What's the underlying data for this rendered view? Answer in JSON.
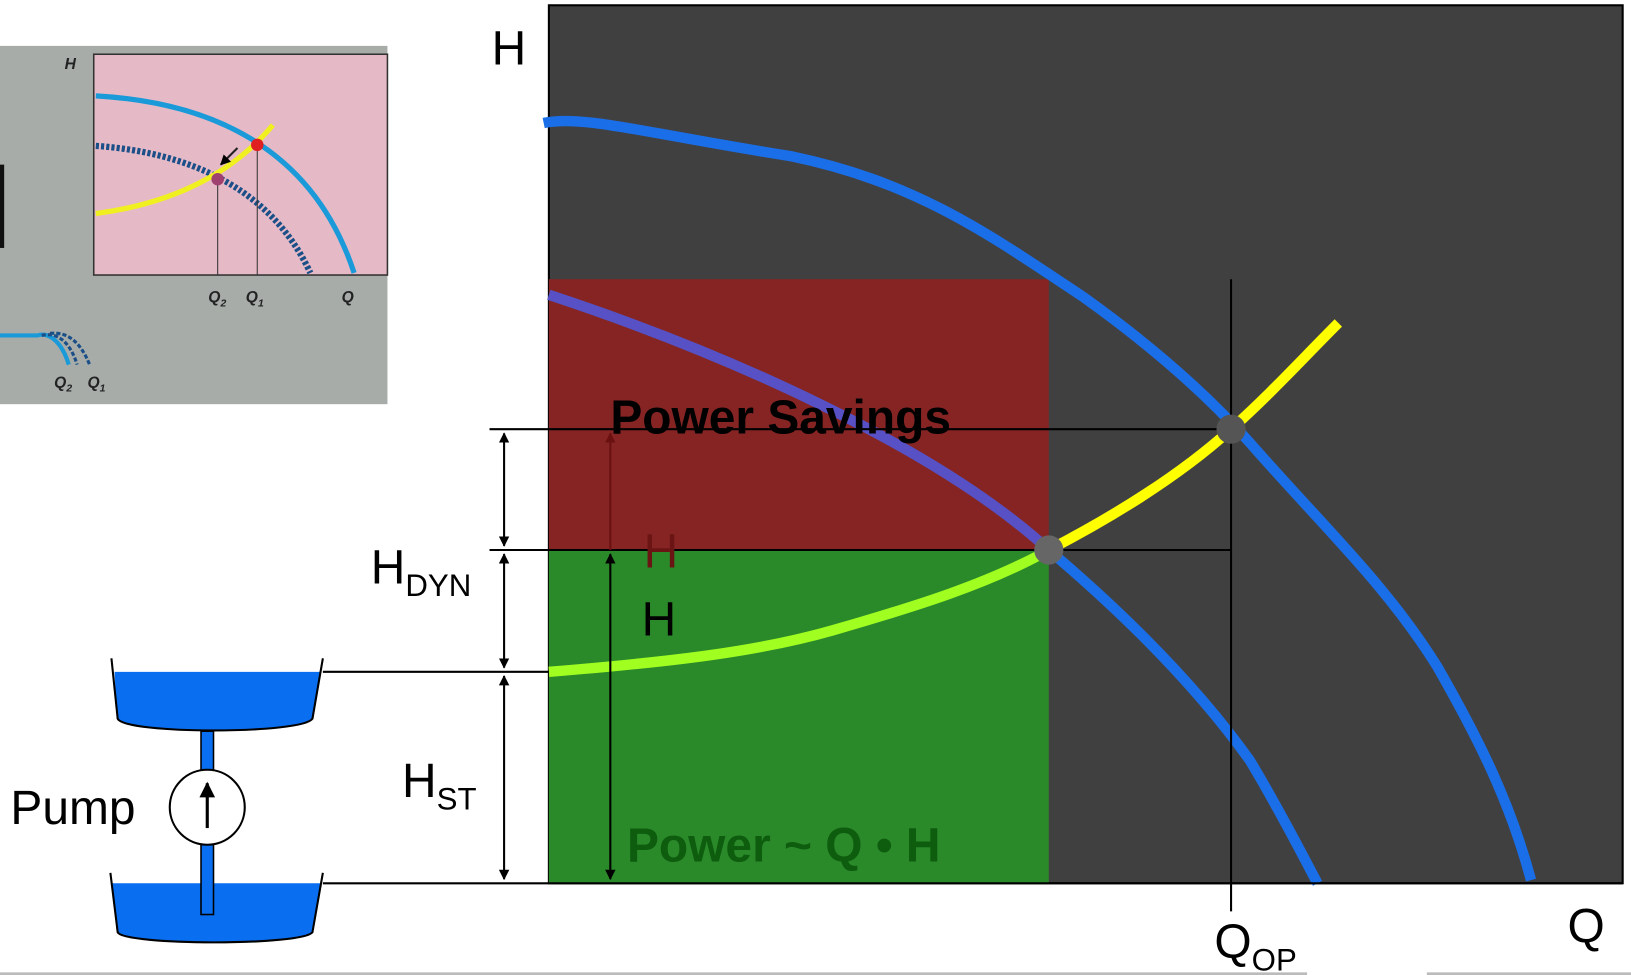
{
  "main_chart": {
    "y_axis_label": "H",
    "x_axis_label": "Q",
    "power_savings": "Power Savings",
    "power_formula": "Power ~ Q • H",
    "head_label_upper": "H",
    "head_label_lower": "H",
    "h_dyn": {
      "main": "H",
      "sub": "DYN"
    },
    "h_st": {
      "main": "H",
      "sub": "ST"
    },
    "q_op": {
      "main": "Q",
      "sub": "OP"
    }
  },
  "pump_label": "Pump",
  "inset": {
    "y_axis_label": "H",
    "x_labels": [
      {
        "main": "Q",
        "sub": "2"
      },
      {
        "main": "Q",
        "sub": "1"
      },
      {
        "main": "Q"
      }
    ],
    "pipe_labels": [
      {
        "main": "Q",
        "sub": "2"
      },
      {
        "main": "Q",
        "sub": "1"
      }
    ]
  }
}
